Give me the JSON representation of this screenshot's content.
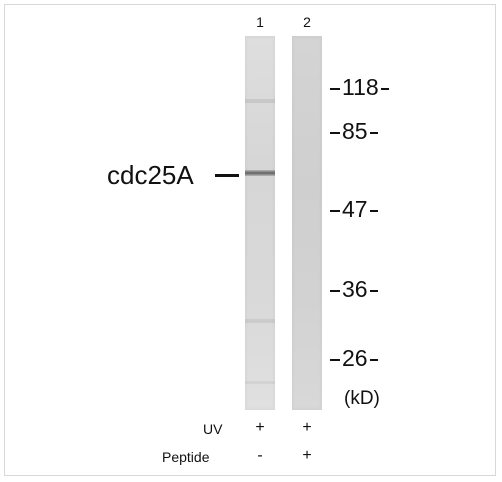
{
  "lanes": [
    {
      "number": "1",
      "uv": "+",
      "peptide": "-"
    },
    {
      "number": "2",
      "uv": "+",
      "peptide": "+"
    }
  ],
  "target_label": "cdc25A",
  "markers": [
    "118",
    "85",
    "47",
    "36",
    "26"
  ],
  "unit": "(kD)",
  "row_labels": {
    "uv": "UV",
    "peptide": "Peptide"
  }
}
